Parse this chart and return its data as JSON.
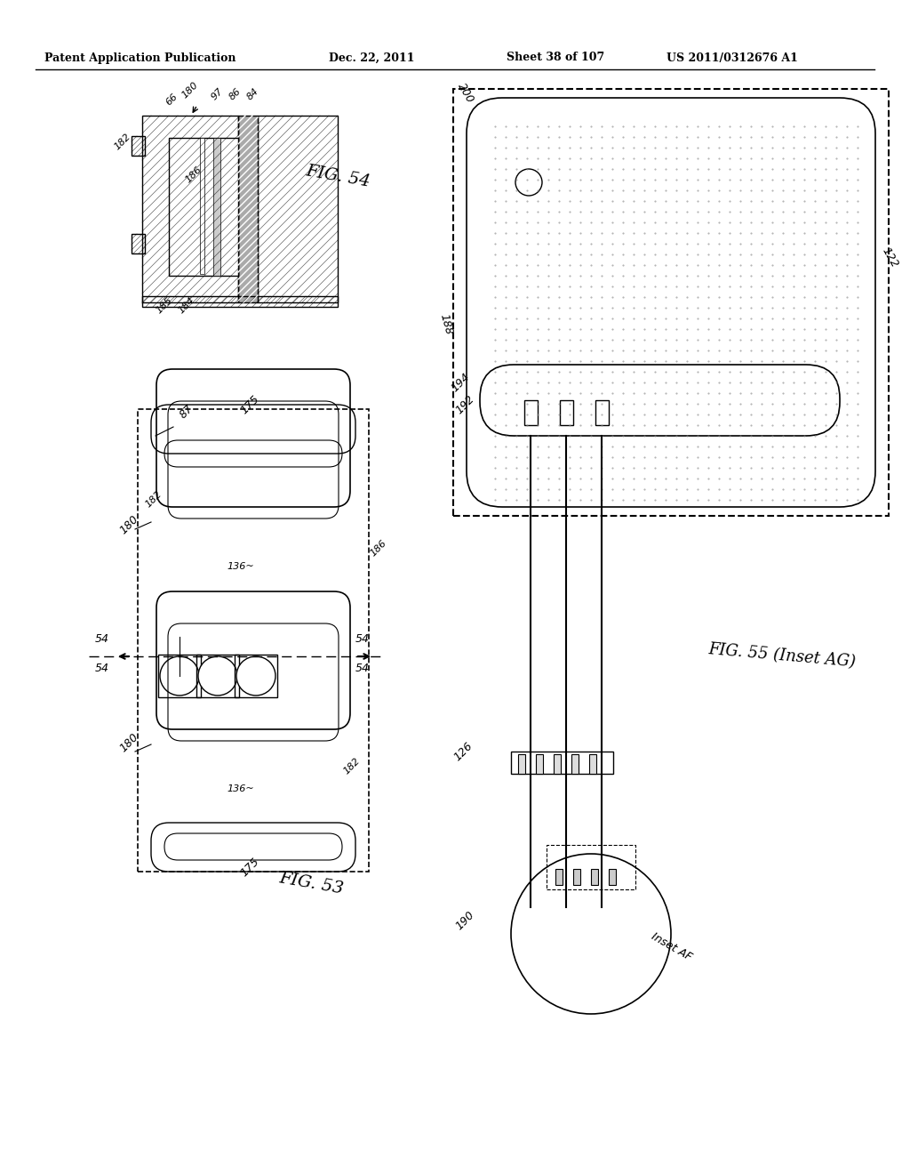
{
  "header_left": "Patent Application Publication",
  "header_mid": "Dec. 22, 2011",
  "header_right1": "Sheet 38 of 107",
  "header_right2": "US 2011/0312676 A1",
  "fig54_label": "FIG. 54",
  "fig53_label": "FIG. 53",
  "fig55_label": "FIG. 55 (Inset AG)",
  "inset_label": "Inset AF",
  "bg_color": "#ffffff",
  "line_color": "#000000",
  "hatch_color": "#555555"
}
